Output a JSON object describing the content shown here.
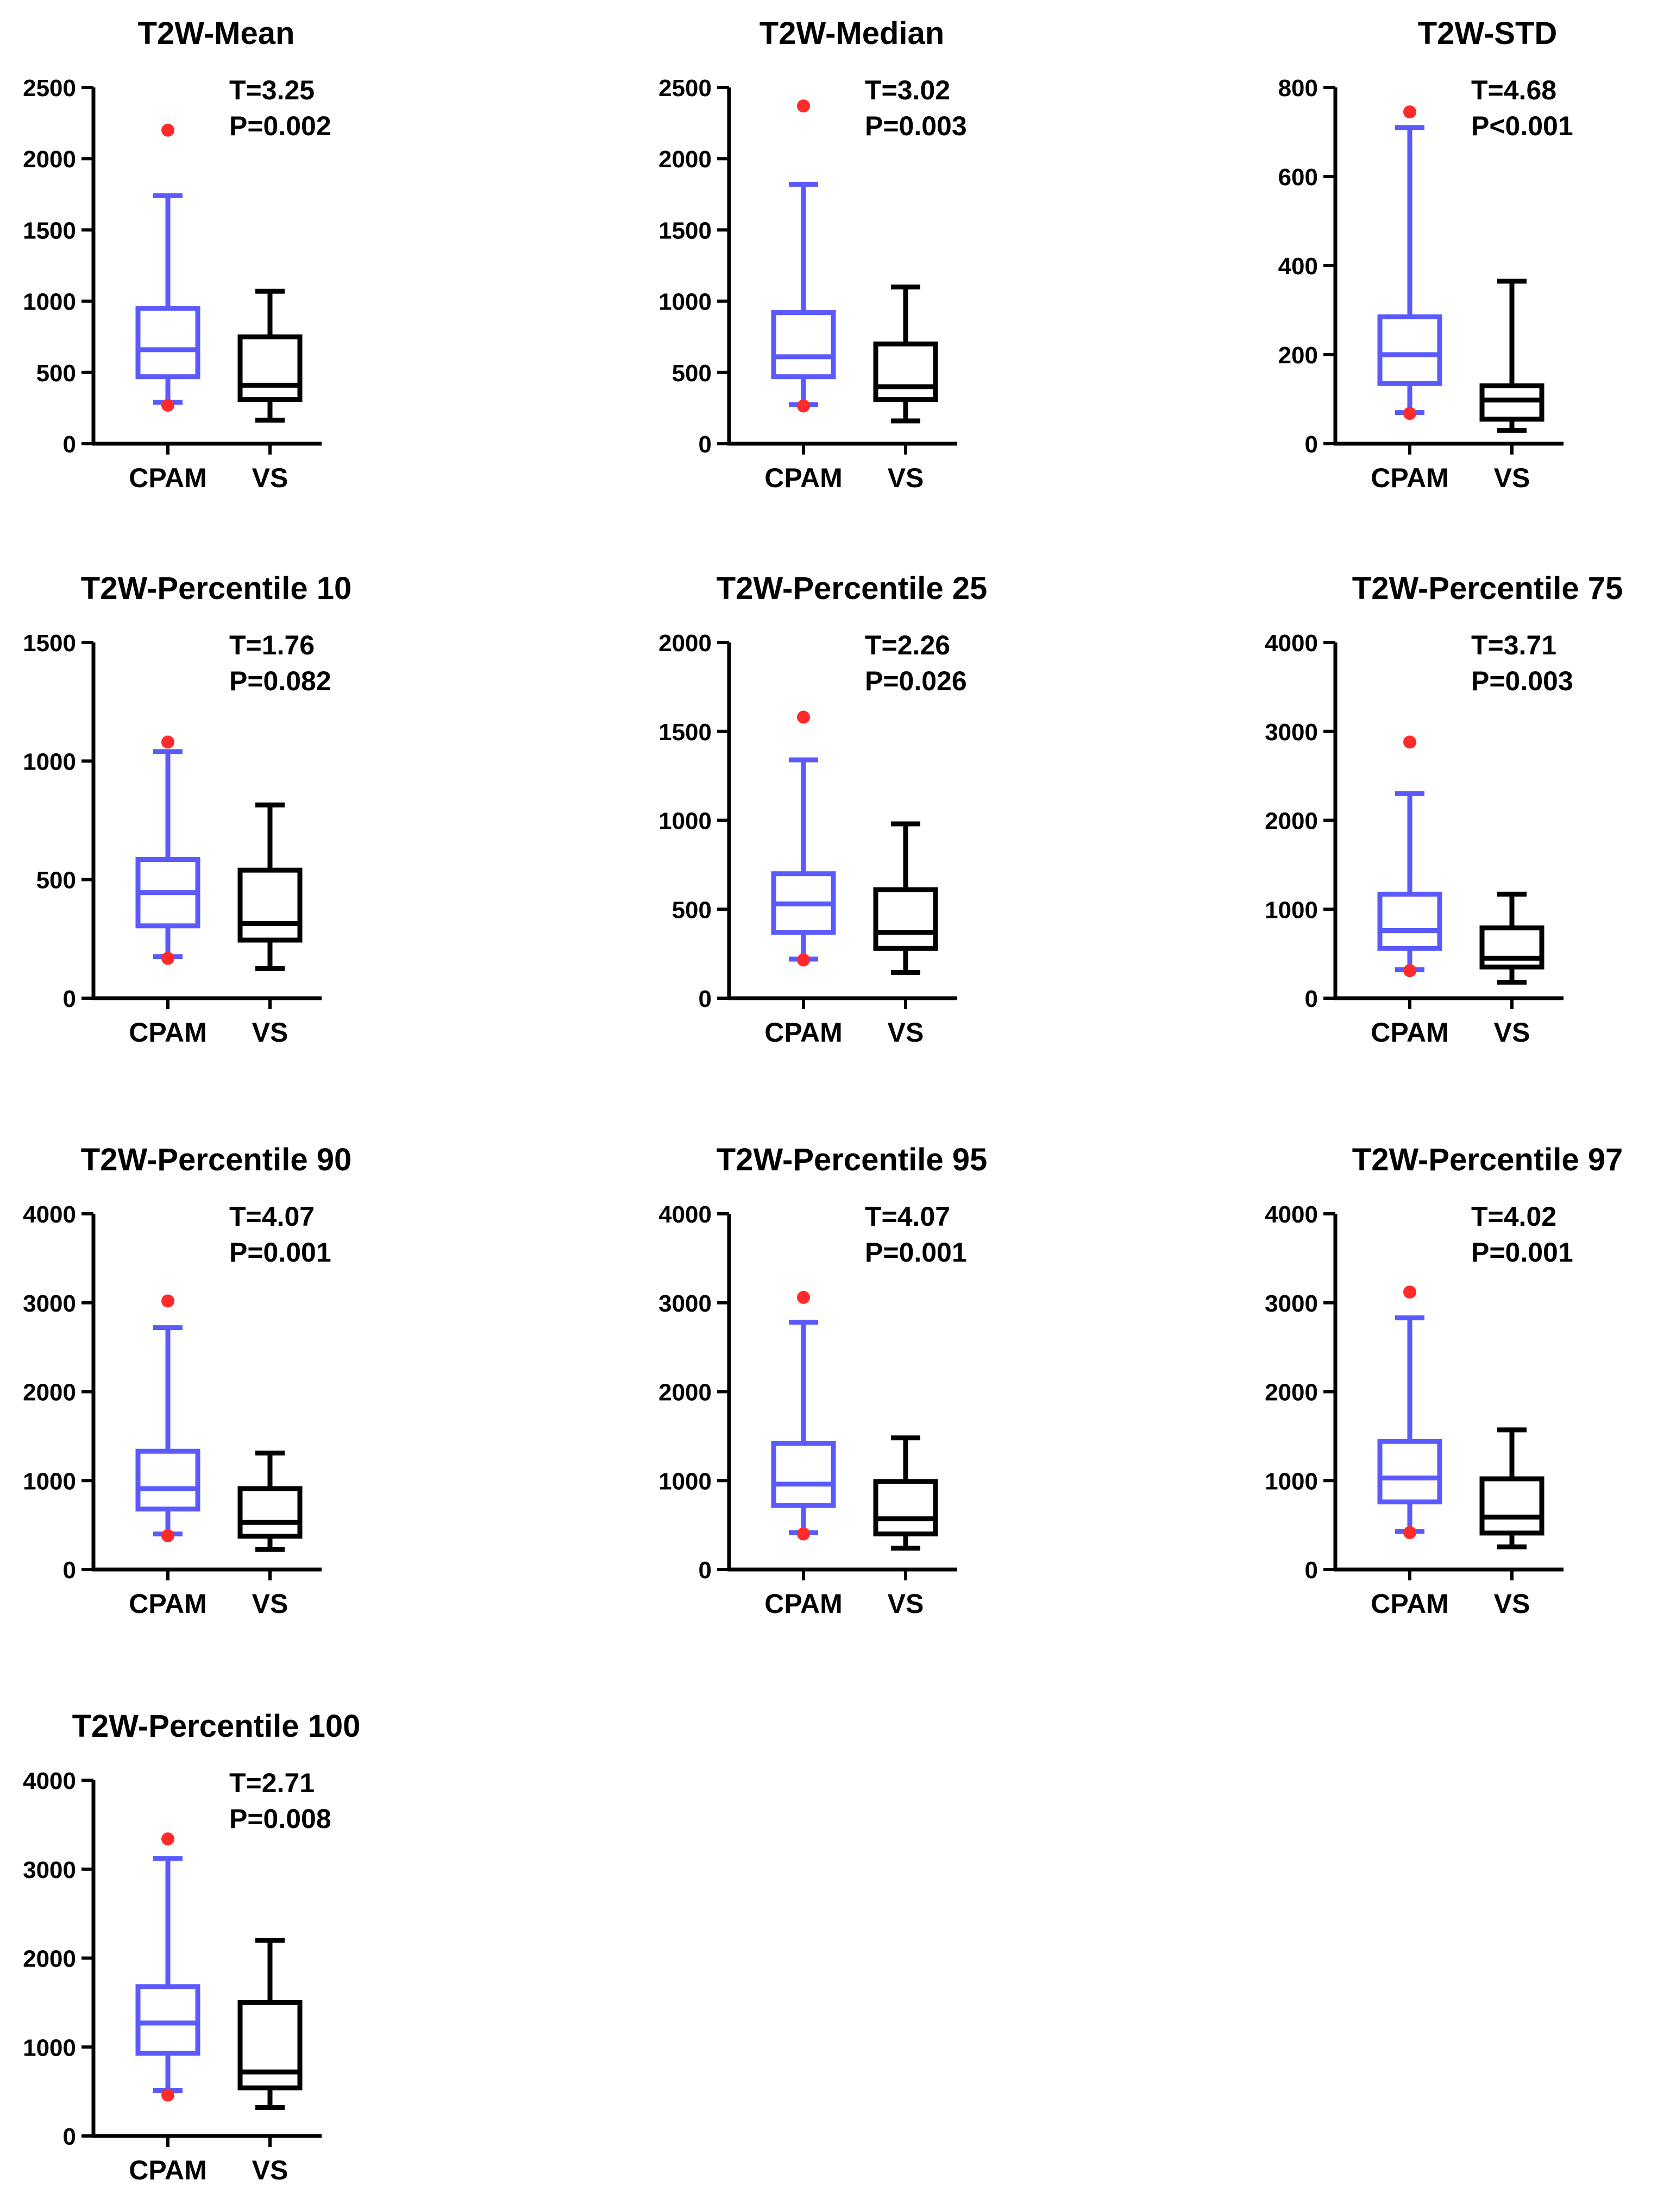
{
  "colors": {
    "cpam": "#5a5aff",
    "vs": "#000000",
    "outlier": "#ff2a2a",
    "axis": "#000000"
  },
  "chart_data": [
    {
      "type": "box",
      "title": "T2W-Mean",
      "t_label": "T=3.25",
      "p_label": "P=0.002",
      "categories": [
        "CPAM",
        "VS"
      ],
      "ylim": [
        0,
        2500
      ],
      "yticks": [
        0,
        500,
        1000,
        1500,
        2000,
        2500
      ],
      "boxes": [
        {
          "name": "CPAM",
          "min": 290,
          "q1": 470,
          "median": 660,
          "q3": 950,
          "max": 1740,
          "outliers": [
            2200,
            270
          ]
        },
        {
          "name": "VS",
          "min": 165,
          "q1": 310,
          "median": 410,
          "q3": 750,
          "max": 1070,
          "outliers": []
        }
      ]
    },
    {
      "type": "box",
      "title": "T2W-Median",
      "t_label": "T=3.02",
      "p_label": "P=0.003",
      "categories": [
        "CPAM",
        "VS"
      ],
      "ylim": [
        0,
        2500
      ],
      "yticks": [
        0,
        500,
        1000,
        1500,
        2000,
        2500
      ],
      "boxes": [
        {
          "name": "CPAM",
          "min": 275,
          "q1": 470,
          "median": 610,
          "q3": 920,
          "max": 1820,
          "outliers": [
            2370,
            265
          ]
        },
        {
          "name": "VS",
          "min": 160,
          "q1": 310,
          "median": 400,
          "q3": 700,
          "max": 1100,
          "outliers": []
        }
      ]
    },
    {
      "type": "box",
      "title": "T2W-STD",
      "t_label": "T=4.68",
      "p_label": "P<0.001",
      "categories": [
        "CPAM",
        "VS"
      ],
      "ylim": [
        0,
        800
      ],
      "yticks": [
        0,
        200,
        400,
        600,
        800
      ],
      "boxes": [
        {
          "name": "CPAM",
          "min": 70,
          "q1": 135,
          "median": 200,
          "q3": 285,
          "max": 710,
          "outliers": [
            745,
            68
          ]
        },
        {
          "name": "VS",
          "min": 30,
          "q1": 55,
          "median": 98,
          "q3": 130,
          "max": 365,
          "outliers": []
        }
      ]
    },
    {
      "type": "box",
      "title": "T2W-Percentile 10",
      "t_label": "T=1.76",
      "p_label": "P=0.082",
      "categories": [
        "CPAM",
        "VS"
      ],
      "ylim": [
        0,
        1500
      ],
      "yticks": [
        0,
        500,
        1000,
        1500
      ],
      "boxes": [
        {
          "name": "CPAM",
          "min": 175,
          "q1": 305,
          "median": 445,
          "q3": 585,
          "max": 1040,
          "outliers": [
            1080,
            168
          ]
        },
        {
          "name": "VS",
          "min": 125,
          "q1": 245,
          "median": 315,
          "q3": 540,
          "max": 815,
          "outliers": []
        }
      ]
    },
    {
      "type": "box",
      "title": "T2W-Percentile 25",
      "t_label": "T=2.26",
      "p_label": "P=0.026",
      "categories": [
        "CPAM",
        "VS"
      ],
      "ylim": [
        0,
        2000
      ],
      "yticks": [
        0,
        500,
        1000,
        1500,
        2000
      ],
      "boxes": [
        {
          "name": "CPAM",
          "min": 220,
          "q1": 370,
          "median": 530,
          "q3": 700,
          "max": 1340,
          "outliers": [
            1580,
            215
          ]
        },
        {
          "name": "VS",
          "min": 145,
          "q1": 280,
          "median": 370,
          "q3": 610,
          "max": 980,
          "outliers": []
        }
      ]
    },
    {
      "type": "box",
      "title": "T2W-Percentile 75",
      "t_label": "T=3.71",
      "p_label": "P=0.003",
      "categories": [
        "CPAM",
        "VS"
      ],
      "ylim": [
        0,
        4000
      ],
      "yticks": [
        0,
        1000,
        2000,
        3000,
        4000
      ],
      "boxes": [
        {
          "name": "CPAM",
          "min": 320,
          "q1": 560,
          "median": 760,
          "q3": 1170,
          "max": 2300,
          "outliers": [
            2880,
            310
          ]
        },
        {
          "name": "VS",
          "min": 180,
          "q1": 350,
          "median": 450,
          "q3": 790,
          "max": 1170,
          "outliers": []
        }
      ]
    },
    {
      "type": "box",
      "title": "T2W-Percentile 90",
      "t_label": "T=4.07",
      "p_label": "P=0.001",
      "categories": [
        "CPAM",
        "VS"
      ],
      "ylim": [
        0,
        4000
      ],
      "yticks": [
        0,
        1000,
        2000,
        3000,
        4000
      ],
      "boxes": [
        {
          "name": "CPAM",
          "min": 400,
          "q1": 680,
          "median": 910,
          "q3": 1330,
          "max": 2720,
          "outliers": [
            3020,
            380
          ]
        },
        {
          "name": "VS",
          "min": 225,
          "q1": 375,
          "median": 530,
          "q3": 910,
          "max": 1310,
          "outliers": []
        }
      ]
    },
    {
      "type": "box",
      "title": "T2W-Percentile 95",
      "t_label": "T=4.07",
      "p_label": "P=0.001",
      "categories": [
        "CPAM",
        "VS"
      ],
      "ylim": [
        0,
        4000
      ],
      "yticks": [
        0,
        1000,
        2000,
        3000,
        4000
      ],
      "boxes": [
        {
          "name": "CPAM",
          "min": 415,
          "q1": 720,
          "median": 960,
          "q3": 1420,
          "max": 2780,
          "outliers": [
            3060,
            400
          ]
        },
        {
          "name": "VS",
          "min": 240,
          "q1": 400,
          "median": 570,
          "q3": 990,
          "max": 1480,
          "outliers": []
        }
      ]
    },
    {
      "type": "box",
      "title": "T2W-Percentile 97",
      "t_label": "T=4.02",
      "p_label": "P=0.001",
      "categories": [
        "CPAM",
        "VS"
      ],
      "ylim": [
        0,
        4000
      ],
      "yticks": [
        0,
        1000,
        2000,
        3000,
        4000
      ],
      "boxes": [
        {
          "name": "CPAM",
          "min": 430,
          "q1": 760,
          "median": 1030,
          "q3": 1440,
          "max": 2830,
          "outliers": [
            3120,
            415
          ]
        },
        {
          "name": "VS",
          "min": 255,
          "q1": 410,
          "median": 590,
          "q3": 1020,
          "max": 1570,
          "outliers": []
        }
      ]
    },
    {
      "type": "box",
      "title": "T2W-Percentile 100",
      "t_label": "T=2.71",
      "p_label": "P=0.008",
      "categories": [
        "CPAM",
        "VS"
      ],
      "ylim": [
        0,
        4000
      ],
      "yticks": [
        0,
        1000,
        2000,
        3000,
        4000
      ],
      "boxes": [
        {
          "name": "CPAM",
          "min": 510,
          "q1": 930,
          "median": 1270,
          "q3": 1680,
          "max": 3120,
          "outliers": [
            3340,
            460
          ]
        },
        {
          "name": "VS",
          "min": 320,
          "q1": 540,
          "median": 720,
          "q3": 1500,
          "max": 2200,
          "outliers": []
        }
      ]
    }
  ]
}
